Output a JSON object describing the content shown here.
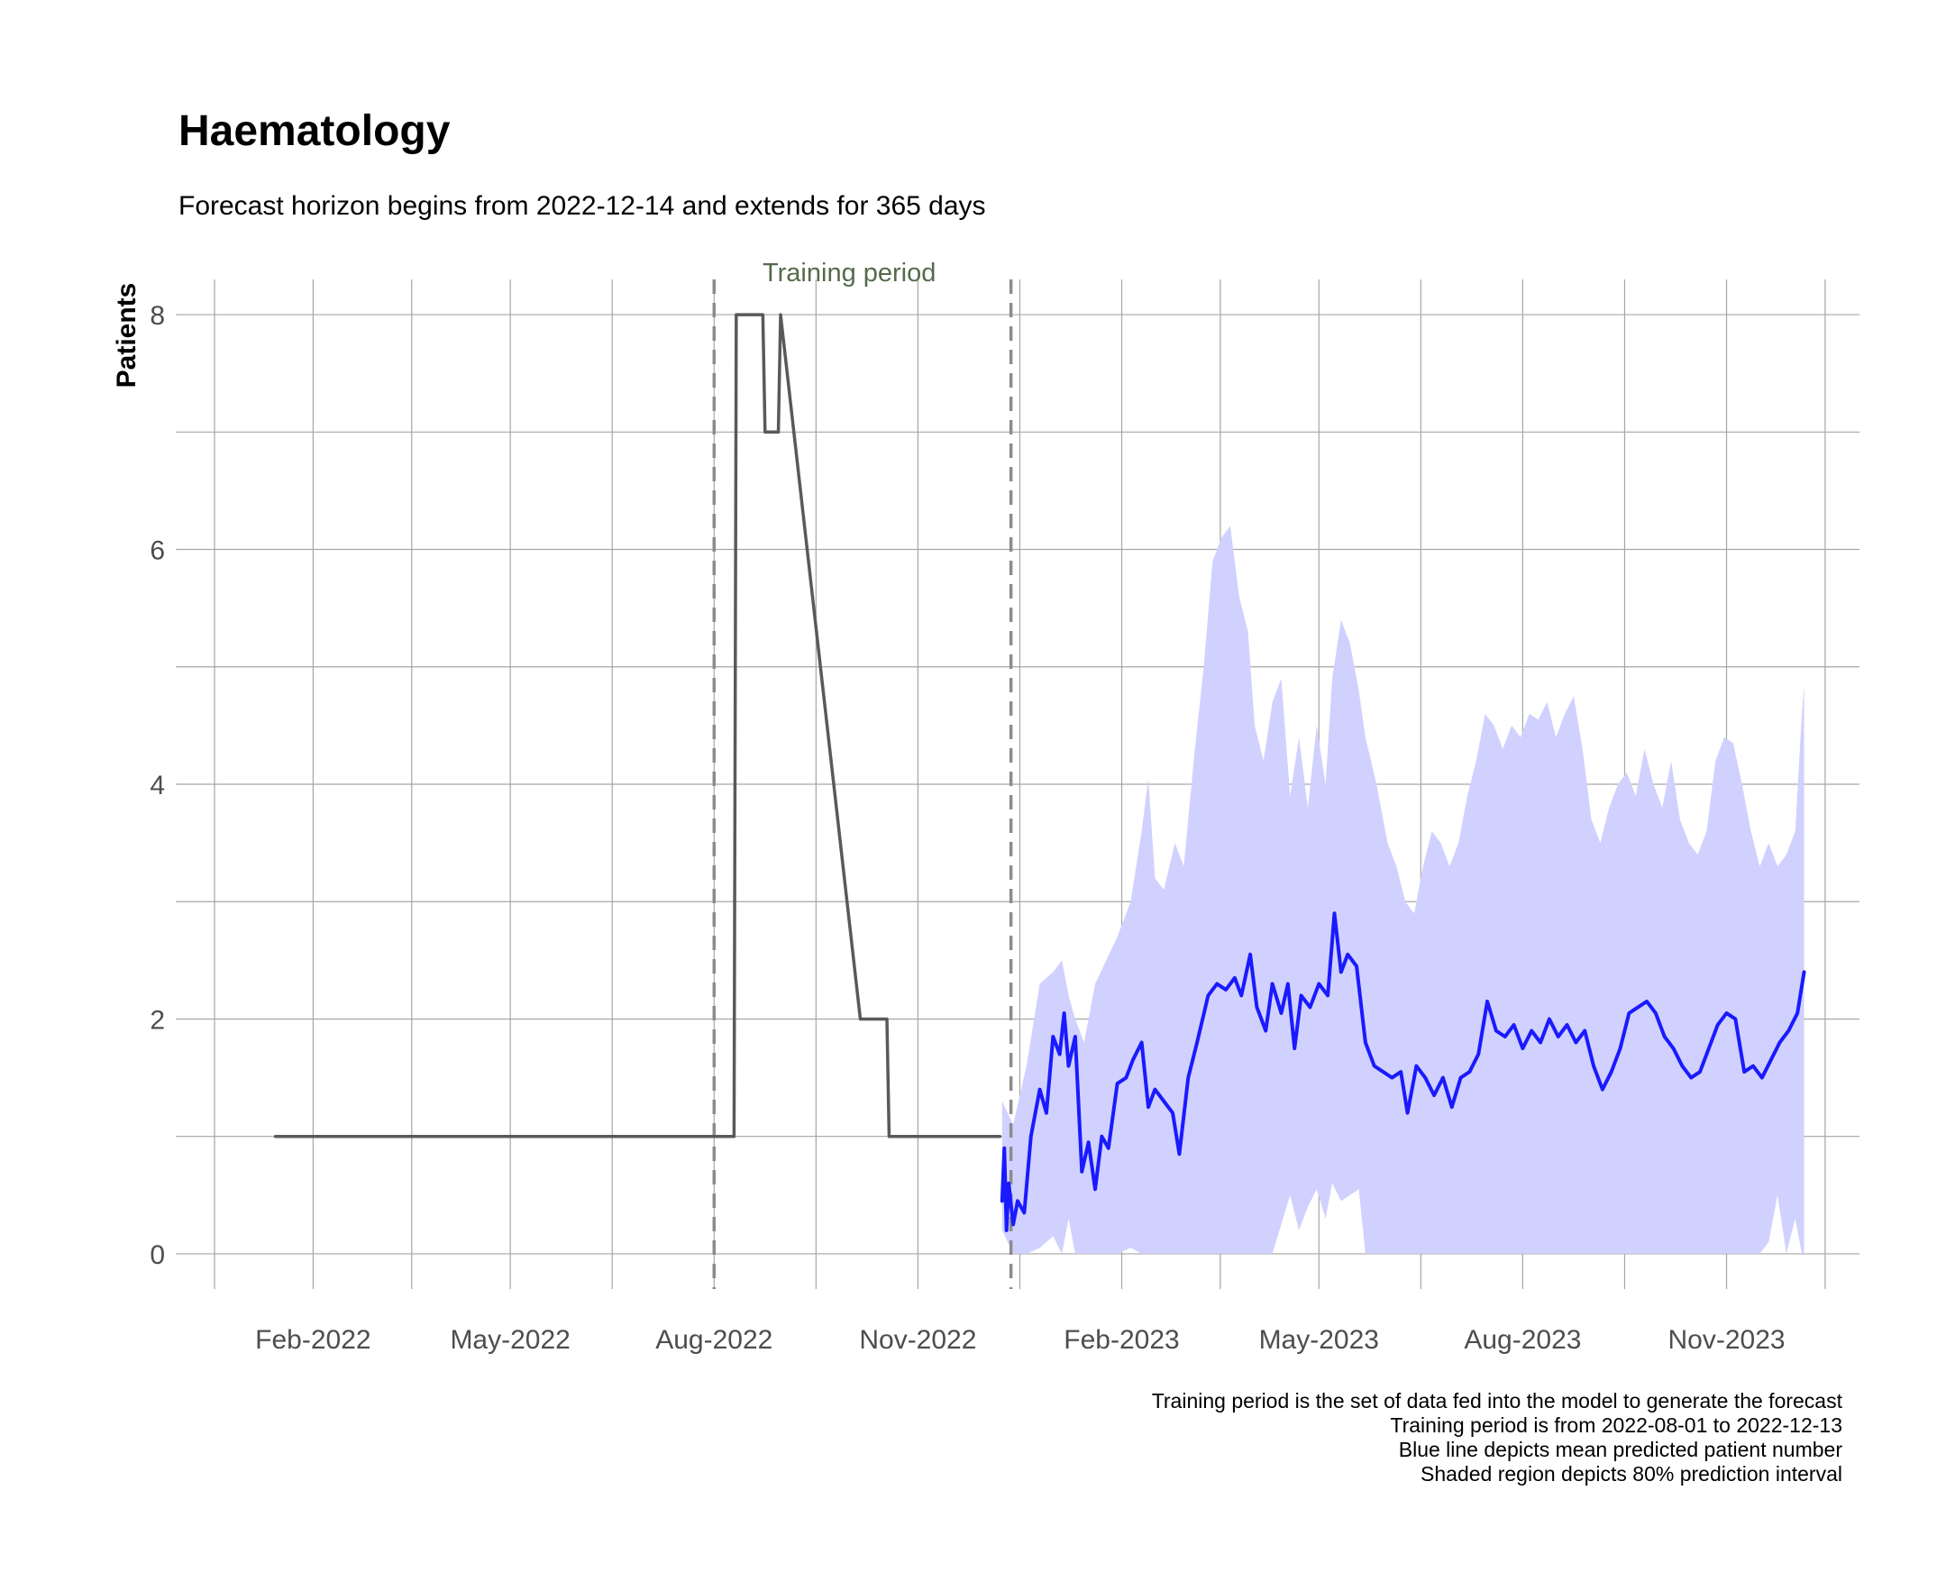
{
  "chart_data": {
    "type": "line",
    "title": "Haematology",
    "subtitle": "Forecast horizon begins from 2022-12-14 and extends for 365 days",
    "xlabel": "",
    "ylabel": "Patients",
    "xlim": [
      "2021-12-01",
      "2023-12-31"
    ],
    "ylim": [
      -0.3,
      8.3
    ],
    "x_ticks": [
      "2022-02-01",
      "2022-05-01",
      "2022-08-01",
      "2022-11-01",
      "2023-02-01",
      "2023-05-01",
      "2023-08-01",
      "2023-11-01"
    ],
    "x_tick_labels": [
      "Feb-2022",
      "May-2022",
      "Aug-2022",
      "Nov-2022",
      "Feb-2023",
      "May-2023",
      "Aug-2023",
      "Nov-2023"
    ],
    "y_ticks": [
      0,
      2,
      4,
      6,
      8
    ],
    "y_tick_labels": [
      "0",
      "2",
      "4",
      "6",
      "8"
    ],
    "grid": true,
    "reference_lines": [
      {
        "x": "2022-08-01",
        "style": "dashed"
      },
      {
        "x": "2022-12-13",
        "style": "dashed"
      }
    ],
    "annotation": {
      "text": "Training period",
      "x": "2022-10-01",
      "y": 8.3
    },
    "series": [
      {
        "style": "step",
        "color": "#595959",
        "points": [
          [
            "2022-01-15",
            1
          ],
          [
            "2022-08-10",
            1
          ],
          [
            "2022-08-11",
            8
          ],
          [
            "2022-08-23",
            8
          ],
          [
            "2022-08-24",
            7
          ],
          [
            "2022-08-30",
            7
          ],
          [
            "2022-08-31",
            8
          ],
          [
            "2022-10-06",
            2
          ],
          [
            "2022-10-18",
            2
          ],
          [
            "2022-10-19",
            1
          ],
          [
            "2022-12-08",
            1
          ]
        ]
      },
      {
        "style": "line",
        "color": "#1a1aff",
        "points": [
          [
            "2022-12-09",
            0.45
          ],
          [
            "2022-12-10",
            0.9
          ],
          [
            "2022-12-11",
            0.2
          ],
          [
            "2022-12-12",
            0.6
          ],
          [
            "2022-12-14",
            0.25
          ],
          [
            "2022-12-16",
            0.45
          ],
          [
            "2022-12-19",
            0.35
          ],
          [
            "2022-12-22",
            1.0
          ],
          [
            "2022-12-26",
            1.4
          ],
          [
            "2022-12-29",
            1.2
          ],
          [
            "2023-01-01",
            1.85
          ],
          [
            "2023-01-04",
            1.7
          ],
          [
            "2023-01-06",
            2.05
          ],
          [
            "2023-01-08",
            1.6
          ],
          [
            "2023-01-11",
            1.85
          ],
          [
            "2023-01-14",
            0.7
          ],
          [
            "2023-01-17",
            0.95
          ],
          [
            "2023-01-20",
            0.55
          ],
          [
            "2023-01-23",
            1.0
          ],
          [
            "2023-01-26",
            0.9
          ],
          [
            "2023-01-30",
            1.45
          ],
          [
            "2023-02-03",
            1.5
          ],
          [
            "2023-02-06",
            1.65
          ],
          [
            "2023-02-10",
            1.8
          ],
          [
            "2023-02-13",
            1.25
          ],
          [
            "2023-02-16",
            1.4
          ],
          [
            "2023-02-20",
            1.3
          ],
          [
            "2023-02-24",
            1.2
          ],
          [
            "2023-02-27",
            0.85
          ],
          [
            "2023-03-03",
            1.5
          ],
          [
            "2023-03-07",
            1.8
          ],
          [
            "2023-03-12",
            2.2
          ],
          [
            "2023-03-16",
            2.3
          ],
          [
            "2023-03-20",
            2.25
          ],
          [
            "2023-03-24",
            2.35
          ],
          [
            "2023-03-27",
            2.2
          ],
          [
            "2023-03-31",
            2.55
          ],
          [
            "2023-04-03",
            2.1
          ],
          [
            "2023-04-07",
            1.9
          ],
          [
            "2023-04-10",
            2.3
          ],
          [
            "2023-04-14",
            2.05
          ],
          [
            "2023-04-17",
            2.3
          ],
          [
            "2023-04-20",
            1.75
          ],
          [
            "2023-04-23",
            2.2
          ],
          [
            "2023-04-27",
            2.1
          ],
          [
            "2023-05-01",
            2.3
          ],
          [
            "2023-05-05",
            2.2
          ],
          [
            "2023-05-08",
            2.9
          ],
          [
            "2023-05-11",
            2.4
          ],
          [
            "2023-05-14",
            2.55
          ],
          [
            "2023-05-18",
            2.45
          ],
          [
            "2023-05-22",
            1.8
          ],
          [
            "2023-05-26",
            1.6
          ],
          [
            "2023-05-30",
            1.55
          ],
          [
            "2023-06-03",
            1.5
          ],
          [
            "2023-06-07",
            1.55
          ],
          [
            "2023-06-10",
            1.2
          ],
          [
            "2023-06-14",
            1.6
          ],
          [
            "2023-06-18",
            1.5
          ],
          [
            "2023-06-22",
            1.35
          ],
          [
            "2023-06-26",
            1.5
          ],
          [
            "2023-06-30",
            1.25
          ],
          [
            "2023-07-04",
            1.5
          ],
          [
            "2023-07-08",
            1.55
          ],
          [
            "2023-07-12",
            1.7
          ],
          [
            "2023-07-16",
            2.15
          ],
          [
            "2023-07-20",
            1.9
          ],
          [
            "2023-07-24",
            1.85
          ],
          [
            "2023-07-28",
            1.95
          ],
          [
            "2023-08-01",
            1.75
          ],
          [
            "2023-08-05",
            1.9
          ],
          [
            "2023-08-09",
            1.8
          ],
          [
            "2023-08-13",
            2.0
          ],
          [
            "2023-08-17",
            1.85
          ],
          [
            "2023-08-21",
            1.95
          ],
          [
            "2023-08-25",
            1.8
          ],
          [
            "2023-08-29",
            1.9
          ],
          [
            "2023-09-02",
            1.6
          ],
          [
            "2023-09-06",
            1.4
          ],
          [
            "2023-09-10",
            1.55
          ],
          [
            "2023-09-14",
            1.75
          ],
          [
            "2023-09-18",
            2.05
          ],
          [
            "2023-09-22",
            2.1
          ],
          [
            "2023-09-26",
            2.15
          ],
          [
            "2023-09-30",
            2.05
          ],
          [
            "2023-10-04",
            1.85
          ],
          [
            "2023-10-08",
            1.75
          ],
          [
            "2023-10-12",
            1.6
          ],
          [
            "2023-10-16",
            1.5
          ],
          [
            "2023-10-20",
            1.55
          ],
          [
            "2023-10-24",
            1.75
          ],
          [
            "2023-10-28",
            1.95
          ],
          [
            "2023-11-01",
            2.05
          ],
          [
            "2023-11-05",
            2.0
          ],
          [
            "2023-11-09",
            1.55
          ],
          [
            "2023-11-13",
            1.6
          ],
          [
            "2023-11-17",
            1.5
          ],
          [
            "2023-11-21",
            1.65
          ],
          [
            "2023-11-25",
            1.8
          ],
          [
            "2023-11-29",
            1.9
          ],
          [
            "2023-12-03",
            2.05
          ],
          [
            "2023-12-06",
            2.4
          ]
        ]
      }
    ],
    "band": {
      "color": "#d1d1ff",
      "points": [
        [
          "2022-12-09",
          0.2,
          1.3
        ],
        [
          "2022-12-14",
          0.0,
          1.1
        ],
        [
          "2022-12-20",
          0.0,
          1.6
        ],
        [
          "2022-12-26",
          0.05,
          2.3
        ],
        [
          "2023-01-01",
          0.15,
          2.4
        ],
        [
          "2023-01-05",
          0.0,
          2.5
        ],
        [
          "2023-01-08",
          0.3,
          2.2
        ],
        [
          "2023-01-11",
          0.0,
          2.0
        ],
        [
          "2023-01-15",
          0.0,
          1.8
        ],
        [
          "2023-01-20",
          0.0,
          2.3
        ],
        [
          "2023-01-25",
          0.0,
          2.5
        ],
        [
          "2023-01-30",
          0.0,
          2.7
        ],
        [
          "2023-02-05",
          0.05,
          3.0
        ],
        [
          "2023-02-10",
          0.0,
          3.6
        ],
        [
          "2023-02-13",
          0.0,
          4.05
        ],
        [
          "2023-02-16",
          0.0,
          3.2
        ],
        [
          "2023-02-20",
          0.0,
          3.1
        ],
        [
          "2023-02-25",
          0.0,
          3.5
        ],
        [
          "2023-03-01",
          0.0,
          3.3
        ],
        [
          "2023-03-06",
          0.0,
          4.3
        ],
        [
          "2023-03-10",
          0.0,
          5.0
        ],
        [
          "2023-03-14",
          0.0,
          5.9
        ],
        [
          "2023-03-18",
          0.0,
          6.1
        ],
        [
          "2023-03-22",
          0.0,
          6.2
        ],
        [
          "2023-03-26",
          0.0,
          5.6
        ],
        [
          "2023-03-30",
          0.0,
          5.3
        ],
        [
          "2023-04-02",
          0.0,
          4.5
        ],
        [
          "2023-04-06",
          0.0,
          4.2
        ],
        [
          "2023-04-10",
          0.0,
          4.7
        ],
        [
          "2023-04-14",
          0.25,
          4.9
        ],
        [
          "2023-04-18",
          0.5,
          3.9
        ],
        [
          "2023-04-22",
          0.2,
          4.4
        ],
        [
          "2023-04-26",
          0.4,
          3.8
        ],
        [
          "2023-04-30",
          0.55,
          4.5
        ],
        [
          "2023-05-04",
          0.3,
          4.0
        ],
        [
          "2023-05-07",
          0.6,
          4.9
        ],
        [
          "2023-05-11",
          0.45,
          5.4
        ],
        [
          "2023-05-15",
          0.5,
          5.2
        ],
        [
          "2023-05-19",
          0.55,
          4.8
        ],
        [
          "2023-05-22",
          0.0,
          4.4
        ],
        [
          "2023-05-27",
          0.0,
          4.0
        ],
        [
          "2023-06-01",
          0.0,
          3.5
        ],
        [
          "2023-06-05",
          0.0,
          3.3
        ],
        [
          "2023-06-09",
          0.0,
          3.0
        ],
        [
          "2023-06-13",
          0.0,
          2.9
        ],
        [
          "2023-06-17",
          0.0,
          3.3
        ],
        [
          "2023-06-21",
          0.0,
          3.6
        ],
        [
          "2023-06-25",
          0.0,
          3.5
        ],
        [
          "2023-06-29",
          0.0,
          3.3
        ],
        [
          "2023-07-03",
          0.0,
          3.5
        ],
        [
          "2023-07-07",
          0.0,
          3.9
        ],
        [
          "2023-07-11",
          0.0,
          4.2
        ],
        [
          "2023-07-15",
          0.0,
          4.6
        ],
        [
          "2023-07-19",
          0.0,
          4.5
        ],
        [
          "2023-07-23",
          0.0,
          4.3
        ],
        [
          "2023-07-27",
          0.0,
          4.5
        ],
        [
          "2023-07-31",
          0.0,
          4.4
        ],
        [
          "2023-08-04",
          0.0,
          4.6
        ],
        [
          "2023-08-08",
          0.0,
          4.55
        ],
        [
          "2023-08-12",
          0.0,
          4.7
        ],
        [
          "2023-08-16",
          0.0,
          4.4
        ],
        [
          "2023-08-20",
          0.0,
          4.6
        ],
        [
          "2023-08-24",
          0.0,
          4.75
        ],
        [
          "2023-08-28",
          0.0,
          4.3
        ],
        [
          "2023-09-01",
          0.0,
          3.7
        ],
        [
          "2023-09-05",
          0.0,
          3.5
        ],
        [
          "2023-09-09",
          0.0,
          3.8
        ],
        [
          "2023-09-13",
          0.0,
          4.0
        ],
        [
          "2023-09-17",
          0.0,
          4.1
        ],
        [
          "2023-09-21",
          0.0,
          3.9
        ],
        [
          "2023-09-25",
          0.0,
          4.3
        ],
        [
          "2023-09-29",
          0.0,
          4.0
        ],
        [
          "2023-10-03",
          0.0,
          3.8
        ],
        [
          "2023-10-07",
          0.0,
          4.2
        ],
        [
          "2023-10-11",
          0.0,
          3.7
        ],
        [
          "2023-10-15",
          0.0,
          3.5
        ],
        [
          "2023-10-19",
          0.0,
          3.4
        ],
        [
          "2023-10-23",
          0.0,
          3.6
        ],
        [
          "2023-10-27",
          0.0,
          4.2
        ],
        [
          "2023-10-31",
          0.0,
          4.4
        ],
        [
          "2023-11-04",
          0.0,
          4.35
        ],
        [
          "2023-11-08",
          0.0,
          4.0
        ],
        [
          "2023-11-12",
          0.0,
          3.6
        ],
        [
          "2023-11-16",
          0.0,
          3.3
        ],
        [
          "2023-11-20",
          0.1,
          3.5
        ],
        [
          "2023-11-24",
          0.5,
          3.3
        ],
        [
          "2023-11-28",
          0.0,
          3.4
        ],
        [
          "2023-12-02",
          0.3,
          3.6
        ],
        [
          "2023-12-05",
          0.0,
          4.6
        ],
        [
          "2023-12-06",
          0.0,
          4.85
        ]
      ]
    },
    "caption": [
      "Training period is the set of data fed into the model to generate the forecast",
      "Training period is from 2022-08-01 to 2022-12-13",
      "Blue line depicts mean predicted patient number",
      "Shaded region depicts 80% prediction interval"
    ]
  }
}
